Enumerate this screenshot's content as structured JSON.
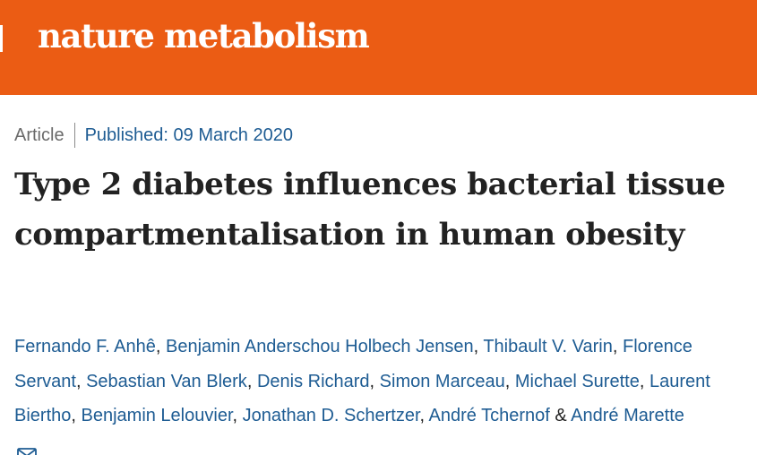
{
  "journal": {
    "name": "nature metabolism",
    "brand_color": "#eb5c14"
  },
  "article": {
    "type": "Article",
    "published": "Published: 09 March 2020",
    "title": "Type 2 diabetes influences bacterial tissue compartmentalisation in human obesity"
  },
  "authors": [
    "Fernando F. Anhê",
    "Benjamin Anderschou Holbech Jensen",
    "Thibault V. Varin",
    "Florence Servant",
    "Sebastian Van Blerk",
    "Denis Richard",
    "Simon Marceau",
    "Michael Surette",
    "Laurent Biertho",
    "Benjamin Lelouvier",
    "Jonathan D. Schertzer",
    "André Tchernof",
    "André Marette"
  ],
  "separators": {
    "comma": ", ",
    "ampersand": " & "
  },
  "icons": {
    "contact": "envelope-icon"
  },
  "colors": {
    "link": "#1e5c93",
    "text": "#222222",
    "muted": "#6a6a6a"
  }
}
